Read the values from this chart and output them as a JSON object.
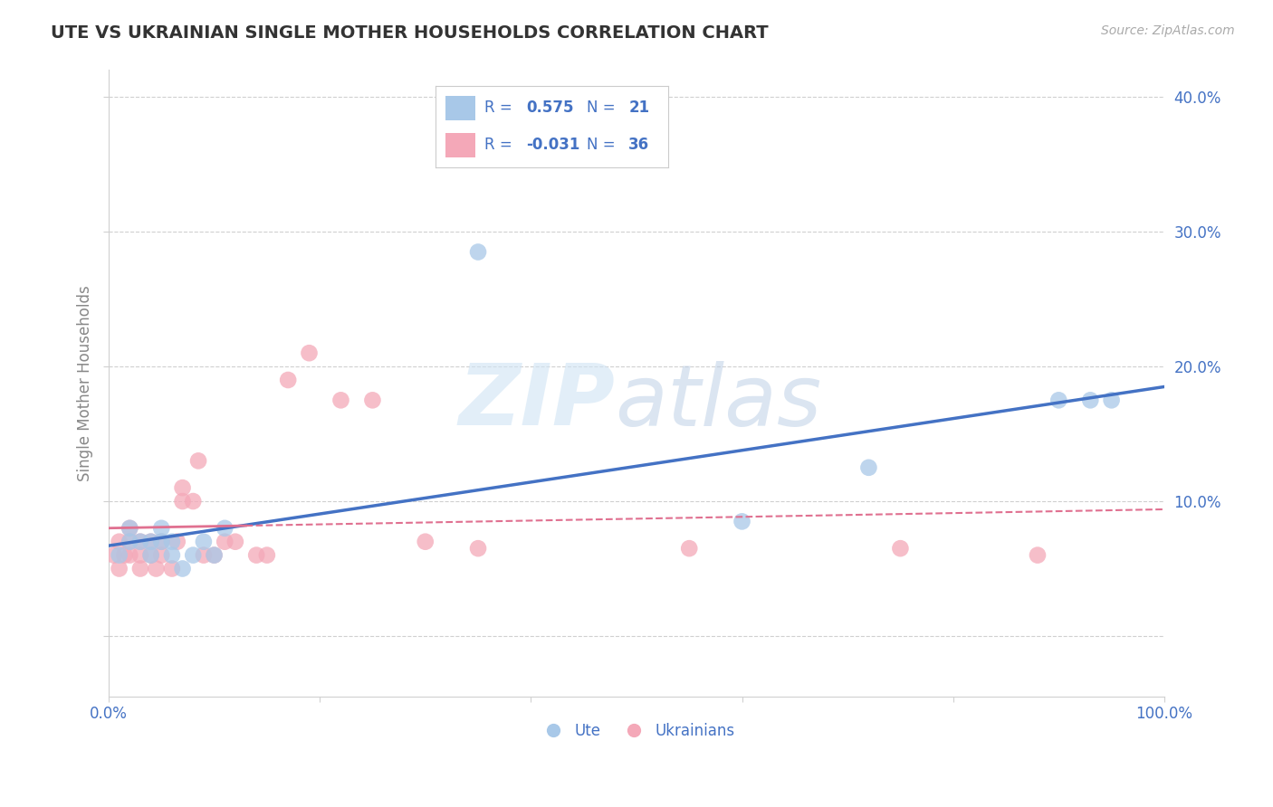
{
  "title": "UTE VS UKRAINIAN SINGLE MOTHER HOUSEHOLDS CORRELATION CHART",
  "source": "Source: ZipAtlas.com",
  "ylabel": "Single Mother Households",
  "xlim": [
    0.0,
    1.0
  ],
  "ylim": [
    -0.045,
    0.42
  ],
  "xticks": [
    0.0,
    0.2,
    0.4,
    0.6,
    0.8,
    1.0
  ],
  "yticks": [
    0.0,
    0.1,
    0.2,
    0.3,
    0.4
  ],
  "xticklabels": [
    "0.0%",
    "",
    "",
    "",
    "",
    "100.0%"
  ],
  "yticklabels": [
    "",
    "10.0%",
    "20.0%",
    "30.0%",
    "40.0%"
  ],
  "ute_R": 0.575,
  "ute_N": 21,
  "ukr_R": -0.031,
  "ukr_N": 36,
  "ute_color": "#a8c8e8",
  "ukr_color": "#f4a8b8",
  "ute_line_color": "#4472c4",
  "ukr_line_color": "#e07090",
  "background_color": "#ffffff",
  "ute_points_x": [
    0.01,
    0.02,
    0.02,
    0.03,
    0.04,
    0.04,
    0.05,
    0.05,
    0.06,
    0.06,
    0.07,
    0.08,
    0.09,
    0.1,
    0.11,
    0.35,
    0.6,
    0.72,
    0.9,
    0.93,
    0.95
  ],
  "ute_points_y": [
    0.06,
    0.07,
    0.08,
    0.07,
    0.07,
    0.06,
    0.08,
    0.07,
    0.06,
    0.07,
    0.05,
    0.06,
    0.07,
    0.06,
    0.08,
    0.285,
    0.085,
    0.125,
    0.175,
    0.175,
    0.175
  ],
  "ukr_points_x": [
    0.005,
    0.01,
    0.01,
    0.015,
    0.02,
    0.02,
    0.02,
    0.03,
    0.03,
    0.03,
    0.04,
    0.04,
    0.045,
    0.05,
    0.05,
    0.06,
    0.065,
    0.07,
    0.07,
    0.08,
    0.085,
    0.09,
    0.1,
    0.11,
    0.12,
    0.14,
    0.15,
    0.17,
    0.19,
    0.22,
    0.25,
    0.3,
    0.35,
    0.55,
    0.75,
    0.88
  ],
  "ukr_points_y": [
    0.06,
    0.07,
    0.05,
    0.06,
    0.08,
    0.07,
    0.06,
    0.07,
    0.06,
    0.05,
    0.06,
    0.07,
    0.05,
    0.06,
    0.07,
    0.05,
    0.07,
    0.1,
    0.11,
    0.1,
    0.13,
    0.06,
    0.06,
    0.07,
    0.07,
    0.06,
    0.06,
    0.19,
    0.21,
    0.175,
    0.175,
    0.07,
    0.065,
    0.065,
    0.065,
    0.06
  ],
  "watermark_zip": "ZIP",
  "watermark_atlas": "atlas",
  "grid_color": "#d0d0d0",
  "legend_text_color": "#4472c4",
  "tick_label_color": "#4472c4",
  "title_color": "#333333",
  "ylabel_color": "#888888"
}
